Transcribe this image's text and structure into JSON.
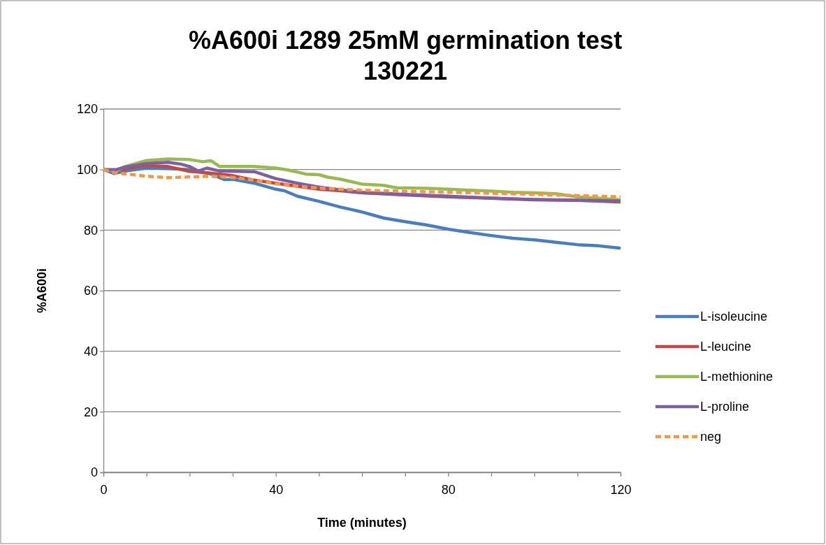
{
  "chart_data": {
    "type": "line",
    "title": "%A600i 1289 25mM germination test 130221",
    "xlabel": "Time (minutes)",
    "ylabel": "%A600i",
    "xlim": [
      0,
      120
    ],
    "xticks": [
      0,
      {
        "value": 10,
        "label": null
      },
      {
        "value": 20,
        "label": null
      },
      {
        "value": 30,
        "label": null
      },
      40,
      {
        "value": 50,
        "label": null
      },
      {
        "value": 60,
        "label": null
      },
      {
        "value": 70,
        "label": null
      },
      80,
      {
        "value": 90,
        "label": null
      },
      {
        "value": 100,
        "label": null
      },
      {
        "value": 110,
        "label": null
      },
      120
    ],
    "ylim": [
      0,
      120
    ],
    "yticks": [
      0,
      20,
      40,
      60,
      80,
      100,
      120
    ],
    "grid": "y",
    "legend": "right",
    "marker": "none",
    "series": [
      {
        "name": "L-isoleucine",
        "color": "#4a7ebb",
        "x": [
          0,
          2.5,
          5,
          10,
          15,
          20,
          25,
          28,
          30,
          35,
          40,
          42,
          45,
          50,
          55,
          60,
          65,
          70,
          75,
          80,
          85,
          90,
          95,
          100,
          105,
          110,
          115,
          120
        ],
        "values": [
          100,
          98.7,
          99.5,
          100.5,
          100.3,
          100,
          98.5,
          96.7,
          96.8,
          95.5,
          93.5,
          93,
          91.2,
          89.5,
          87.6,
          86,
          84,
          82.8,
          81.7,
          80.3,
          79.2,
          78.2,
          77.3,
          76.8,
          76,
          75.2,
          74.8,
          74
        ]
      },
      {
        "name": "L-leucine",
        "color": "#be4b48",
        "x": [
          0,
          3,
          5,
          10,
          15,
          20,
          25,
          30,
          35,
          40,
          45,
          50,
          55,
          60,
          70,
          80,
          90,
          100,
          110,
          120
        ],
        "values": [
          100,
          99.5,
          100.3,
          101.3,
          101,
          99.4,
          98.8,
          98,
          96.5,
          95.5,
          94.5,
          93.5,
          93,
          92.3,
          91.6,
          91,
          90.5,
          90,
          89.8,
          89.3
        ]
      },
      {
        "name": "L-methionine",
        "color": "#98b954",
        "x": [
          0,
          3,
          5,
          10,
          15,
          20,
          23,
          25,
          27,
          30,
          35,
          40,
          43,
          47,
          50,
          52,
          55,
          60,
          65,
          68,
          75,
          80,
          85,
          90,
          95,
          100,
          105,
          110,
          115,
          120
        ],
        "values": [
          100,
          99.5,
          101,
          103,
          103.5,
          103.3,
          102.6,
          102.9,
          101,
          101,
          101,
          100.5,
          99.8,
          98.5,
          98.3,
          97.5,
          96.8,
          95.2,
          94.8,
          94,
          93.8,
          93.5,
          93.2,
          92.9,
          92.5,
          92.3,
          92,
          91,
          90.5,
          90
        ]
      },
      {
        "name": "L-proline",
        "color": "#7d60a0",
        "x": [
          0,
          3,
          5,
          10,
          15,
          18,
          20,
          22,
          24,
          27,
          35,
          40,
          45,
          50,
          55,
          60,
          70,
          80,
          90,
          100,
          110,
          120
        ],
        "values": [
          100,
          100,
          100.8,
          102,
          102.4,
          101.8,
          101,
          99.5,
          100.5,
          99.5,
          99.3,
          97,
          95.5,
          94.2,
          93.3,
          92.5,
          91.8,
          91.2,
          90.6,
          90.1,
          89.9,
          89.6
        ]
      },
      {
        "name": "neg",
        "color": "#f79646",
        "line_style": "dashed",
        "x": [
          0,
          3,
          5,
          10,
          15,
          20,
          25,
          30,
          35,
          40,
          45,
          50,
          55,
          60,
          70,
          80,
          90,
          100,
          110,
          120
        ],
        "values": [
          100,
          98.8,
          98.6,
          97.8,
          97.3,
          97.6,
          97.8,
          97.4,
          96.5,
          95.3,
          94.5,
          93.9,
          93.5,
          93.2,
          92.8,
          92.5,
          92.2,
          91.8,
          91.4,
          91
        ]
      }
    ]
  }
}
